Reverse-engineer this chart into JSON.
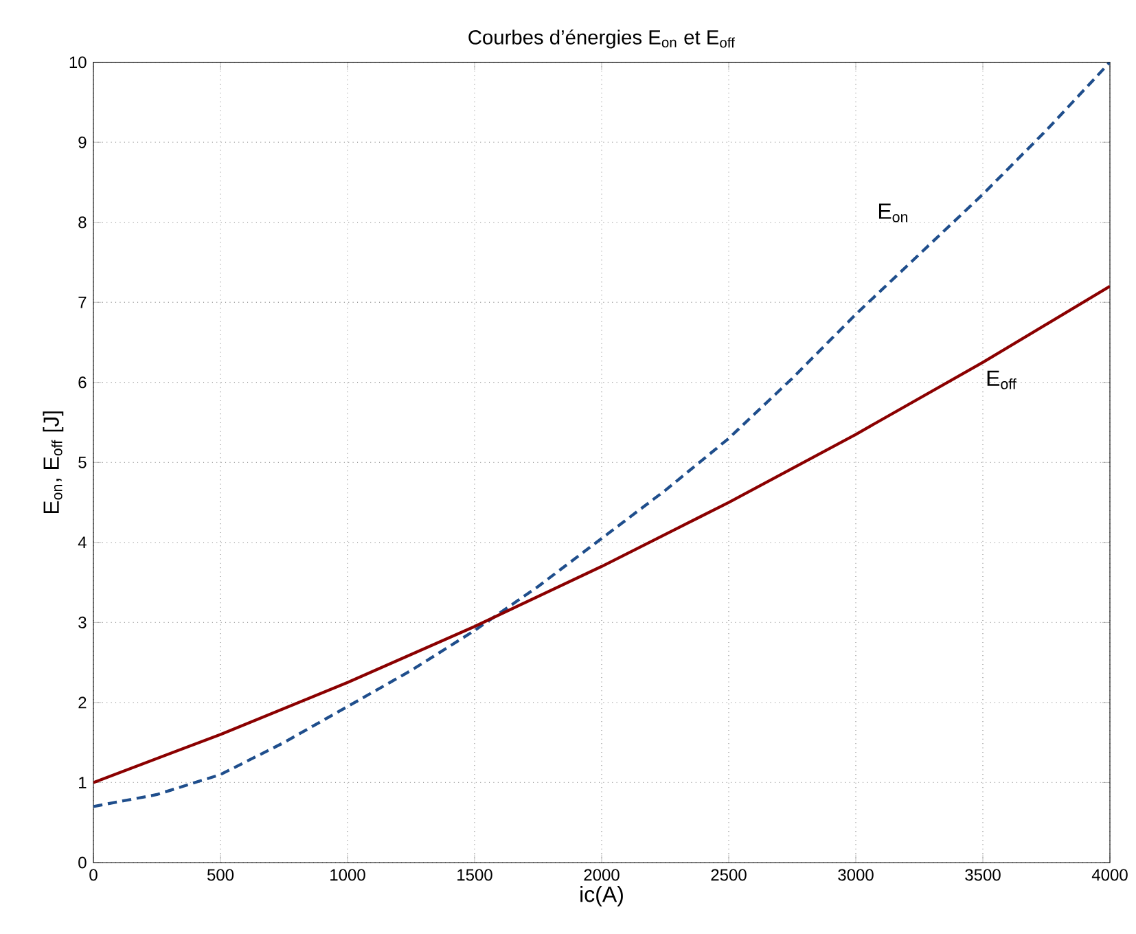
{
  "chart_data": {
    "type": "line",
    "title": "Courbes d’énergies E$_{on}$ et E$_{off}$",
    "xlabel": "ic(A)",
    "ylabel": "E$_{on}$, E$_{off}$ [J]",
    "xlim": [
      0,
      4000
    ],
    "ylim": [
      0,
      10
    ],
    "xticks": [
      0,
      500,
      1000,
      1500,
      2000,
      2500,
      3000,
      3500,
      4000
    ],
    "yticks": [
      0,
      1,
      2,
      3,
      4,
      5,
      6,
      7,
      8,
      9,
      10
    ],
    "grid": true,
    "series": [
      {
        "name": "E$_{on}$",
        "color": "#1f4e8c",
        "line_style": "dashed",
        "x": [
          0,
          250,
          500,
          750,
          1000,
          1250,
          1500,
          1750,
          2000,
          2250,
          2500,
          2750,
          3000,
          3250,
          3500,
          3750,
          4000
        ],
        "values": [
          0.7,
          0.85,
          1.1,
          1.5,
          1.95,
          2.4,
          2.9,
          3.45,
          4.05,
          4.65,
          5.3,
          6.05,
          6.85,
          7.6,
          8.35,
          9.15,
          10.0
        ]
      },
      {
        "name": "E$_{off}$",
        "color": "#8b0000",
        "line_style": "solid",
        "x": [
          0,
          500,
          1000,
          1500,
          2000,
          2500,
          3000,
          3500,
          4000
        ],
        "values": [
          1.0,
          1.6,
          2.25,
          2.95,
          3.7,
          4.5,
          5.35,
          6.25,
          7.2
        ]
      }
    ]
  }
}
